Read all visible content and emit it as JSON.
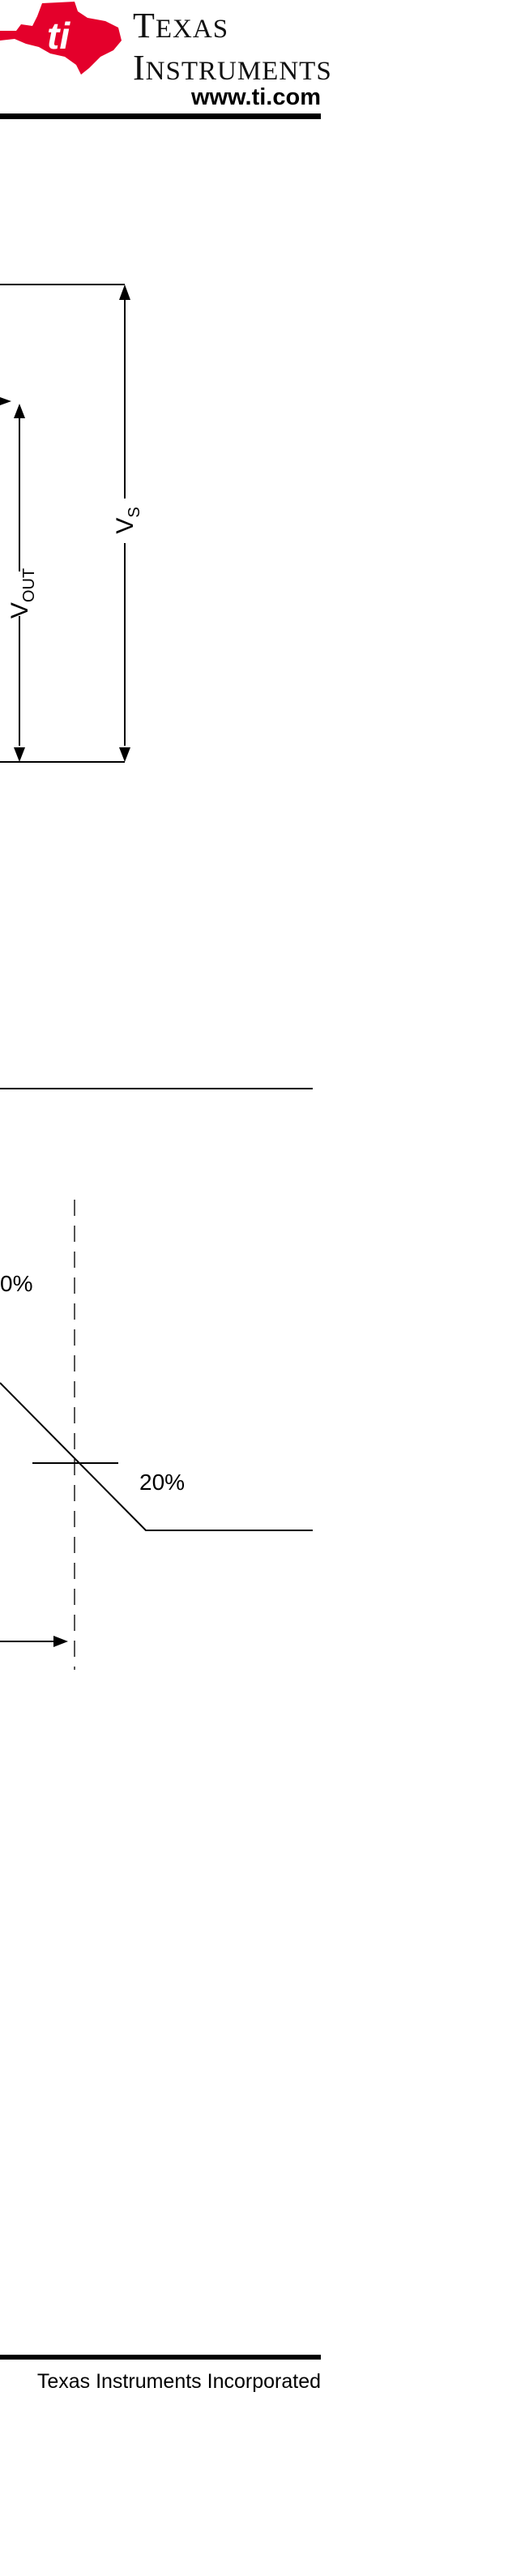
{
  "header": {
    "brand_line1_cap": "T",
    "brand_line1_rest": "EXAS",
    "brand_line2_cap": "I",
    "brand_line2_rest": "NSTRUMENTS",
    "website": "www.ti.com"
  },
  "figure1": {
    "label_vout_main": "V",
    "label_vout_sub": "OUT",
    "label_vs_main": "V",
    "label_vs_sub": "S"
  },
  "figure2": {
    "label_top_percent": "0%",
    "label_bottom_percent": "20%"
  },
  "footer": {
    "copyright": "Texas Instruments Incorporated"
  },
  "colors": {
    "logo_red": "#e4002b",
    "text": "#000000"
  },
  "icons": [
    "ti-logo-icon",
    "arrow-up-icon",
    "arrow-down-icon",
    "arrow-right-icon"
  ]
}
